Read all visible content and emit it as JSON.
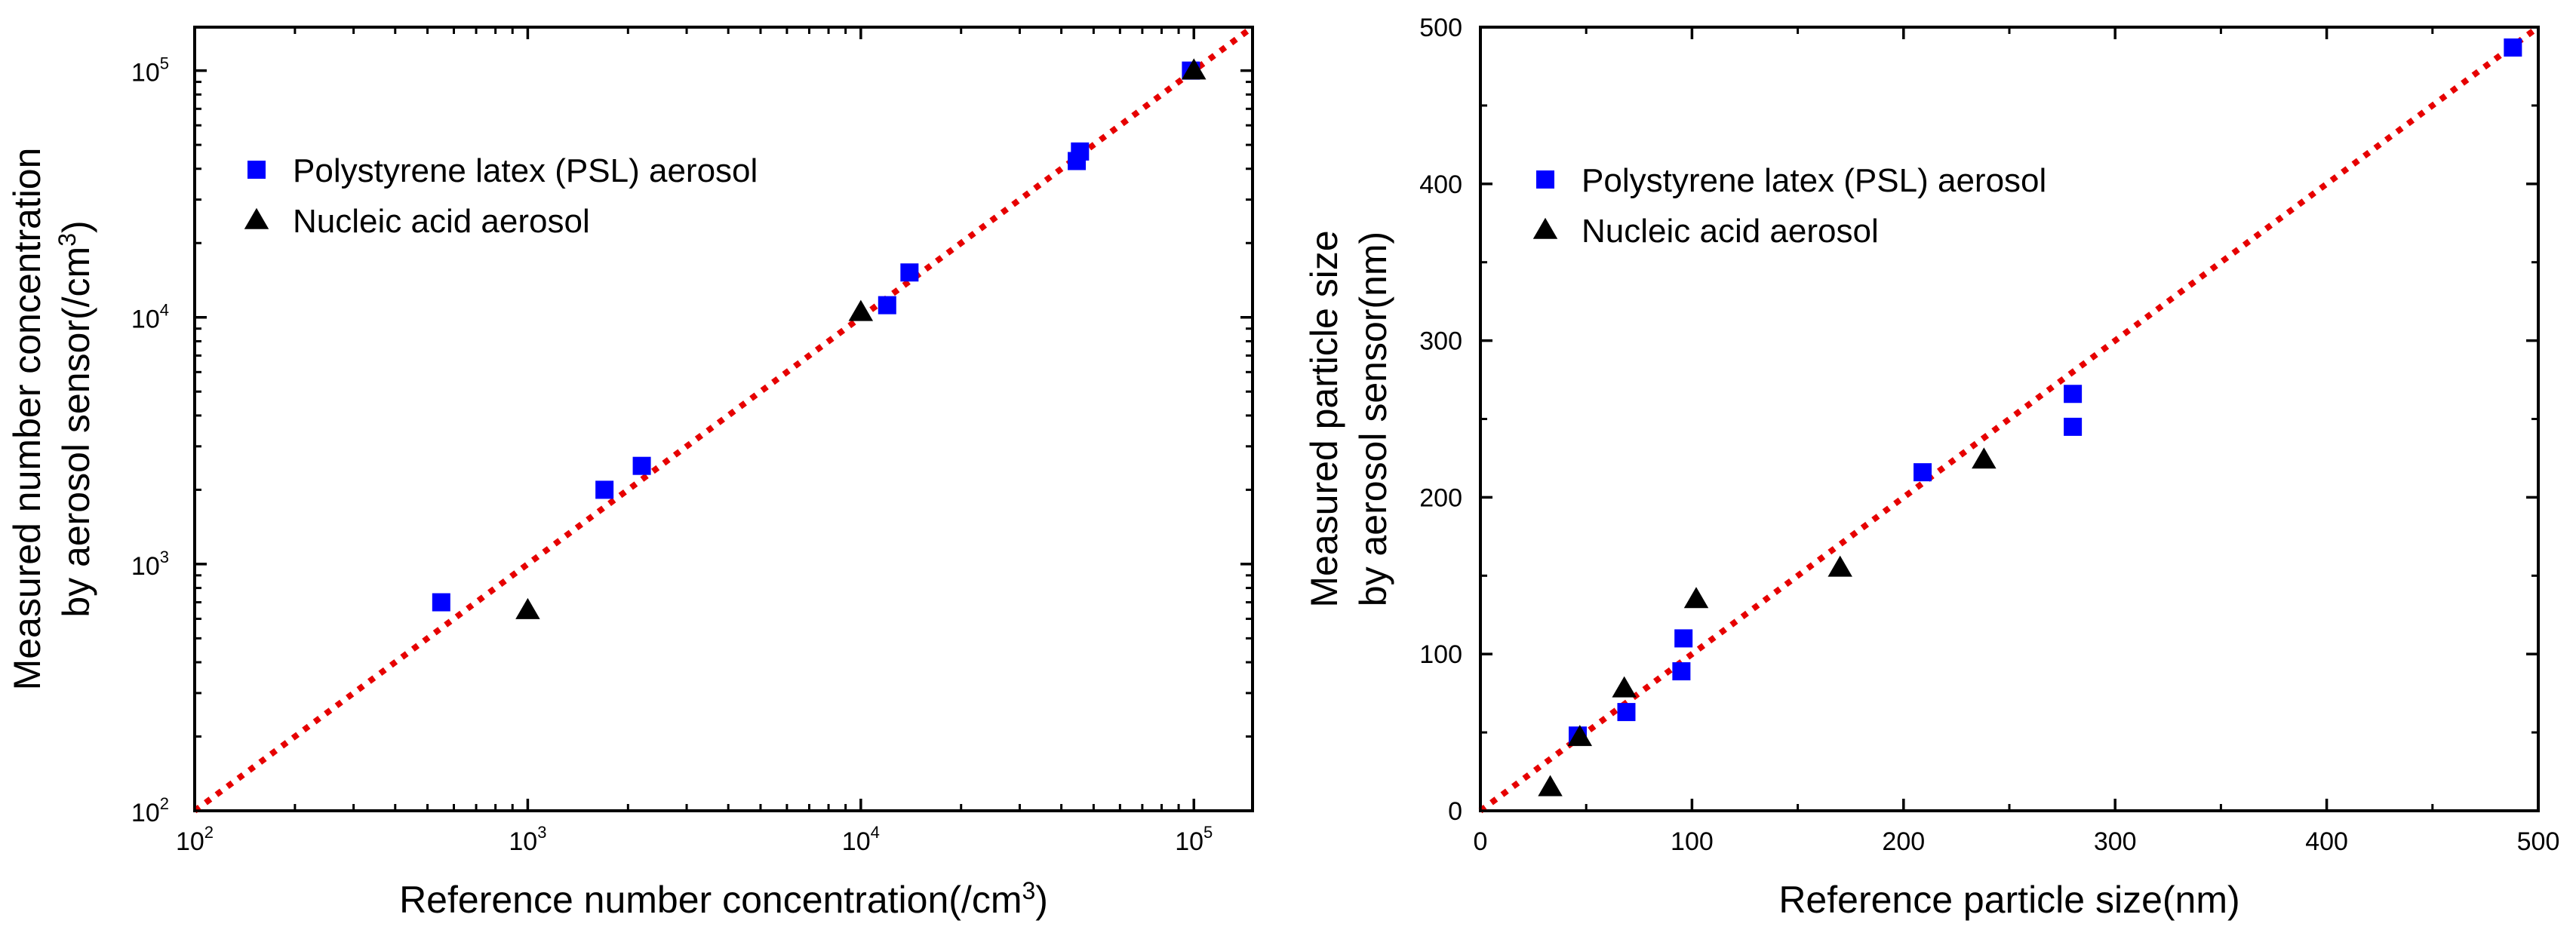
{
  "colors": {
    "psl": "#0000ff",
    "nucleic": "#000000",
    "fit_line": "#e60000"
  },
  "chart_data": [
    {
      "type": "scatter",
      "xscale": "log",
      "yscale": "log",
      "xlim": [
        100,
        150000
      ],
      "ylim": [
        100,
        150000
      ],
      "x_ticks": [
        {
          "base": "10",
          "exp": "2",
          "value": 100
        },
        {
          "base": "10",
          "exp": "3",
          "value": 1000
        },
        {
          "base": "10",
          "exp": "4",
          "value": 10000
        },
        {
          "base": "10",
          "exp": "5",
          "value": 100000
        }
      ],
      "y_ticks": [
        {
          "base": "10",
          "exp": "2",
          "value": 100
        },
        {
          "base": "10",
          "exp": "3",
          "value": 1000
        },
        {
          "base": "10",
          "exp": "4",
          "value": 10000
        },
        {
          "base": "10",
          "exp": "5",
          "value": 100000
        }
      ],
      "xlabel": {
        "text": "Reference number concentration(/cm",
        "sup": "3",
        "tail": ")"
      },
      "ylabel": {
        "line1": "Measured number concentration",
        "line2": {
          "text": "by aerosol sensor(/cm",
          "sup": "3",
          "tail": ")"
        }
      },
      "legend_position": "upper-left",
      "reference_line": "y = x",
      "series": [
        {
          "name": "Polystyrene latex (PSL) aerosol",
          "marker": "square",
          "points": [
            [
              550,
              700
            ],
            [
              1700,
              2000
            ],
            [
              2200,
              2500
            ],
            [
              12000,
              11200
            ],
            [
              14000,
              15200
            ],
            [
              44500,
              43000
            ],
            [
              45500,
              47000
            ],
            [
              98000,
              100000
            ]
          ]
        },
        {
          "name": "Nucleic acid aerosol",
          "marker": "triangle",
          "points": [
            [
              1000,
              650
            ],
            [
              10000,
              10500
            ],
            [
              100000,
              100000
            ]
          ]
        }
      ]
    },
    {
      "type": "scatter",
      "xscale": "linear",
      "yscale": "linear",
      "xlim": [
        0,
        500
      ],
      "ylim": [
        0,
        500
      ],
      "x_ticks": [
        "0",
        "100",
        "200",
        "300",
        "400",
        "500"
      ],
      "y_ticks": [
        "0",
        "100",
        "200",
        "300",
        "400",
        "500"
      ],
      "xlabel": {
        "text": "Reference particle size(nm)"
      },
      "ylabel": {
        "line1": "Measured particle size",
        "line2": {
          "text": "by aerosol sensor(nm)"
        }
      },
      "legend_position": "upper-left",
      "reference_line": "y = x",
      "series": [
        {
          "name": "Polystyrene latex (PSL) aerosol",
          "marker": "square",
          "points": [
            [
              46,
              48
            ],
            [
              69,
              63
            ],
            [
              95,
              89
            ],
            [
              96,
              110
            ],
            [
              209,
              216
            ],
            [
              280,
              245
            ],
            [
              280,
              266
            ],
            [
              488,
              487
            ]
          ]
        },
        {
          "name": "Nucleic acid aerosol",
          "marker": "triangle",
          "points": [
            [
              33,
              15
            ],
            [
              47,
              47
            ],
            [
              68,
              78
            ],
            [
              102,
              135
            ],
            [
              170,
              155
            ],
            [
              238,
              224
            ]
          ]
        }
      ]
    }
  ]
}
